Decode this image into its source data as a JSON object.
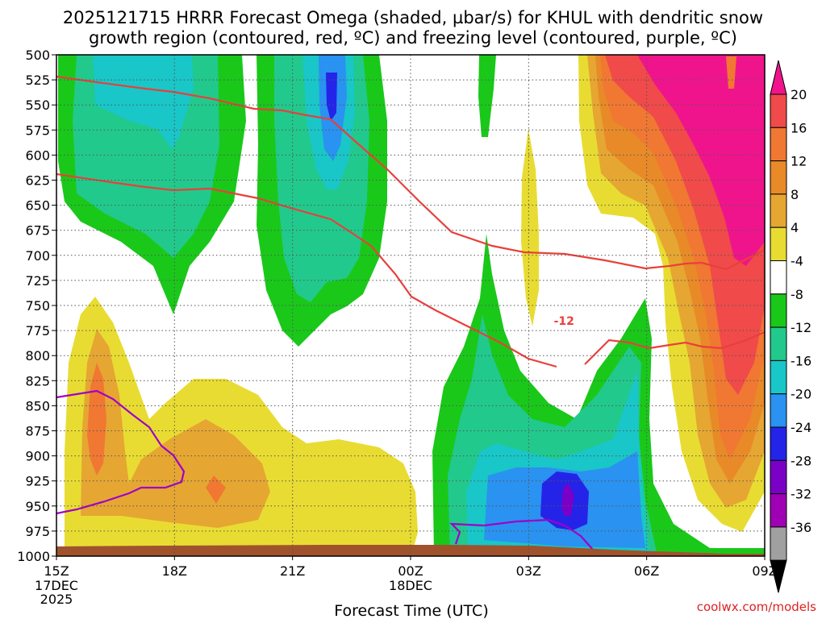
{
  "title_line1": "2025121715 HRRR Forecast Omega (shaded, µbar/s) for KHUL with dendritic snow",
  "title_line2": "growth region (contoured, red, ºC) and freezing level (contoured, purple, ºC)",
  "credit": "coolwx.com/models",
  "colors": {
    "ground": "#a0522d",
    "red_contour": "#e8403a",
    "purple_contour": "#a000c8",
    "neg4": "#1ac81a",
    "neg8": "#22c98c",
    "neg12": "#19c6c8",
    "neg16": "#2a92f0",
    "neg20": "#2424e8",
    "neg24": "#7a00c8",
    "neg28": "#a000b4",
    "neg32": "#a0a0a0",
    "pos4": "#e8dc32",
    "pos8": "#e6a632",
    "pos12": "#e88a28",
    "pos16": "#f07832",
    "pos20": "#f04a4a",
    "pos_max": "#f0148c"
  },
  "chart_data": {
    "type": "heatmap",
    "xlabel": "Forecast Time (UTC)",
    "ylabel": "",
    "x_ticks": [
      "15Z",
      "18Z",
      "21Z",
      "00Z",
      "03Z",
      "06Z",
      "09Z"
    ],
    "x_tick_sub": [
      [
        "17DEC",
        "2025"
      ],
      [],
      [],
      [
        "18DEC"
      ],
      [],
      [],
      []
    ],
    "x_range_hours": [
      0,
      18
    ],
    "y_ticks": [
      500,
      525,
      550,
      575,
      600,
      625,
      650,
      675,
      700,
      725,
      750,
      775,
      800,
      825,
      850,
      875,
      900,
      925,
      950,
      975,
      1000
    ],
    "y_range_hpa": [
      500,
      1000
    ],
    "colorbar_levels": [
      20,
      16,
      12,
      8,
      4,
      -4,
      -8,
      -12,
      -16,
      -20,
      -24,
      -28,
      -32,
      -36
    ],
    "contour_labels": [
      {
        "text": "-12",
        "x_hour": 12.9,
        "p": 770
      }
    ],
    "grid": true
  }
}
